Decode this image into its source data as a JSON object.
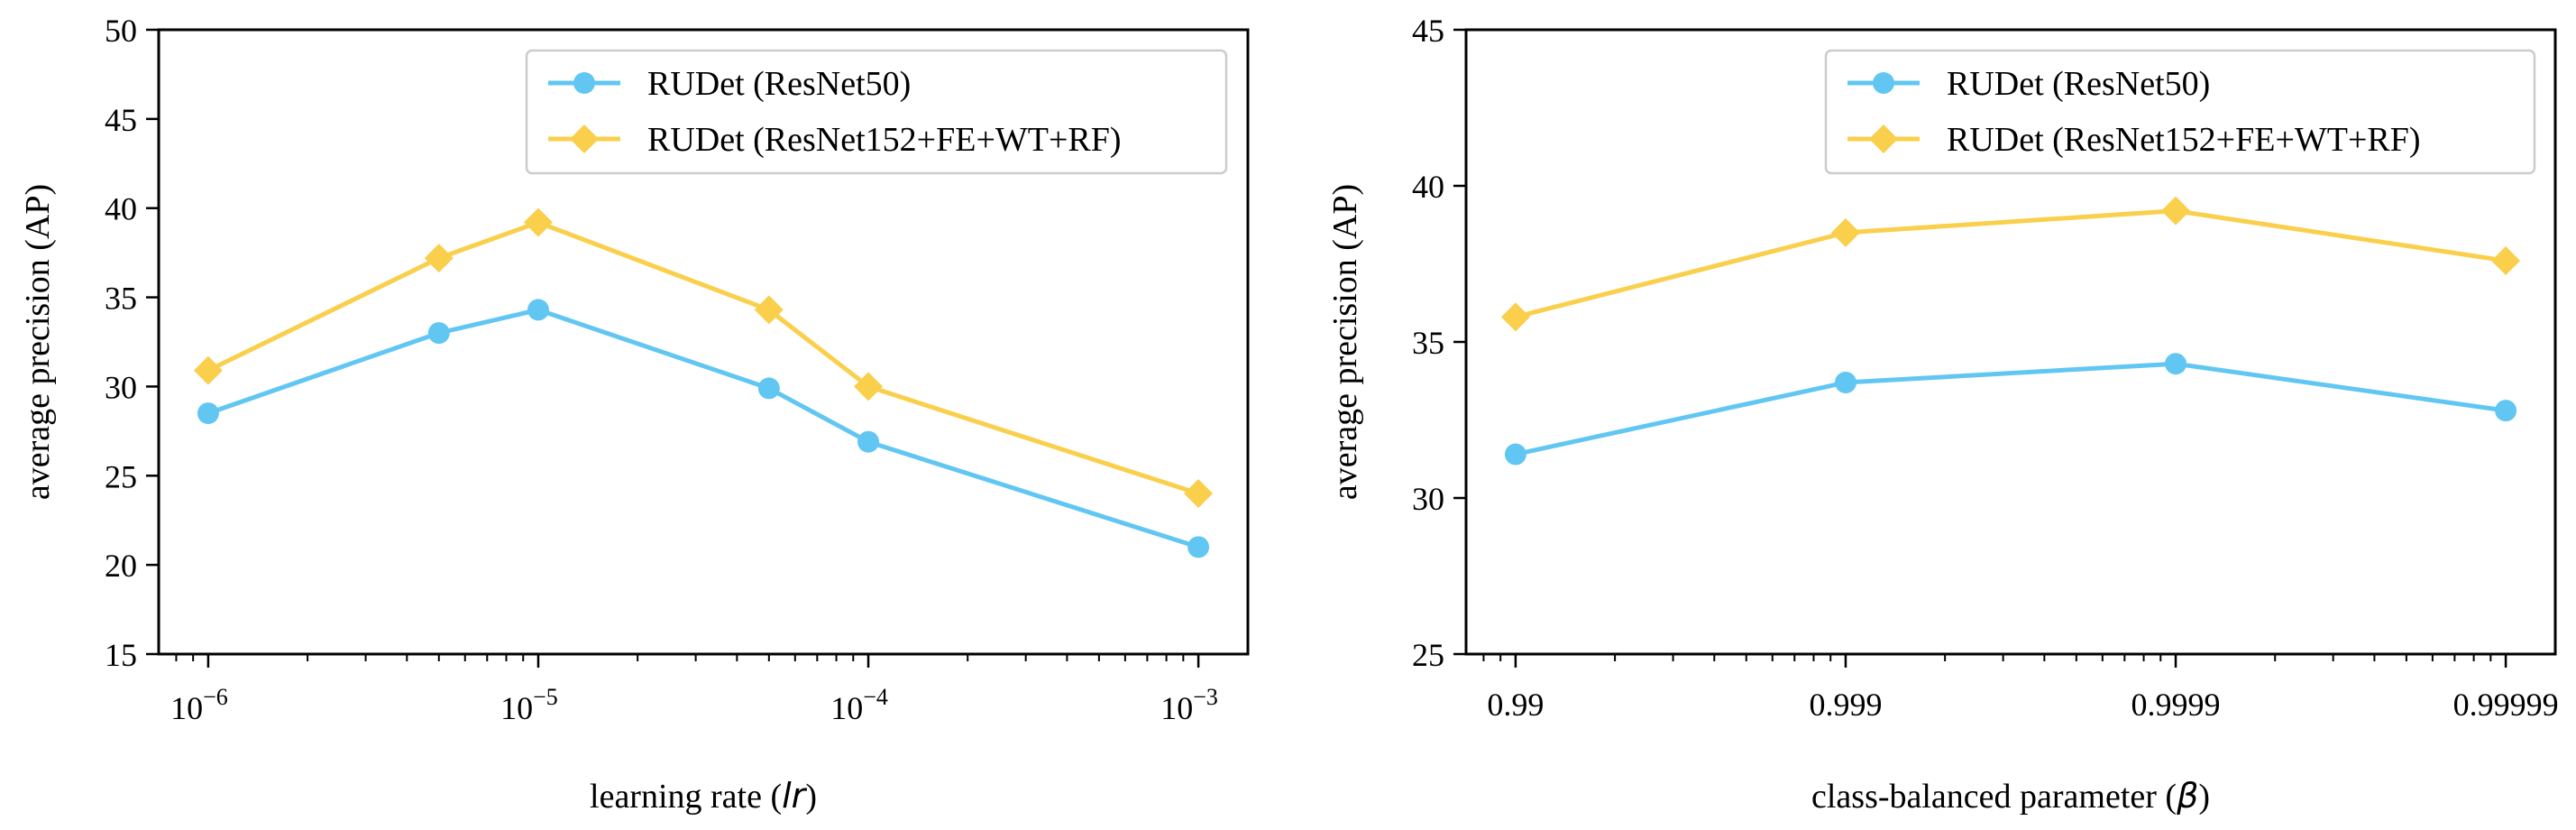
{
  "colors": {
    "series_blue": "#61c7f2",
    "series_gold": "#f9cf4c"
  },
  "chart_data": [
    {
      "type": "line",
      "xscale": "log",
      "x": [
        1e-06,
        5e-06,
        1e-05,
        5e-05,
        0.0001,
        0.001
      ],
      "series": [
        {
          "name": "RUDet (ResNet50)",
          "marker": "circle",
          "values": [
            28.5,
            33.0,
            34.3,
            29.9,
            26.9,
            21.0
          ]
        },
        {
          "name": "RUDet (ResNet152+FE+WT+RF)",
          "marker": "diamond",
          "values": [
            30.9,
            37.2,
            39.2,
            34.3,
            30.0,
            24.0
          ]
        }
      ],
      "xlabel_prefix": "learning rate (",
      "xlabel_symbol": "lr",
      "xlabel_suffix": ")",
      "ylabel": "average precision (AP)",
      "xtick_base": "10",
      "xticks": [
        {
          "value": 1e-06,
          "exp": "−6"
        },
        {
          "value": 1e-05,
          "exp": "−5"
        },
        {
          "value": 0.0001,
          "exp": "−4"
        },
        {
          "value": 0.001,
          "exp": "−3"
        }
      ],
      "xlim_log": [
        -6.15,
        -2.85
      ],
      "yticks": [
        15,
        20,
        25,
        30,
        35,
        40,
        45,
        50
      ],
      "ylim": [
        15,
        50
      ],
      "legend_position": "top-right"
    },
    {
      "type": "line",
      "xscale": "log-of-one-minus",
      "x": [
        0.99,
        0.999,
        0.9999,
        0.99999
      ],
      "x_log_position": [
        2,
        3,
        4,
        5
      ],
      "series": [
        {
          "name": "RUDet (ResNet50)",
          "marker": "circle",
          "values": [
            31.4,
            33.7,
            34.3,
            32.8
          ]
        },
        {
          "name": "RUDet (ResNet152+FE+WT+RF)",
          "marker": "diamond",
          "values": [
            35.8,
            38.5,
            39.2,
            37.6
          ]
        }
      ],
      "xlabel_prefix": "class-balanced parameter (",
      "xlabel_symbol": "β",
      "xlabel_suffix": ")",
      "ylabel": "average precision (AP)",
      "xticks": [
        {
          "label": "0.99",
          "pos": 2
        },
        {
          "label": "0.999",
          "pos": 3
        },
        {
          "label": "0.9999",
          "pos": 4
        },
        {
          "label": "0.99999",
          "pos": 5
        }
      ],
      "xlim_log": [
        1.85,
        5.15
      ],
      "yticks": [
        25,
        30,
        35,
        40,
        45
      ],
      "ylim": [
        25,
        45
      ],
      "legend_position": "top-right"
    }
  ]
}
